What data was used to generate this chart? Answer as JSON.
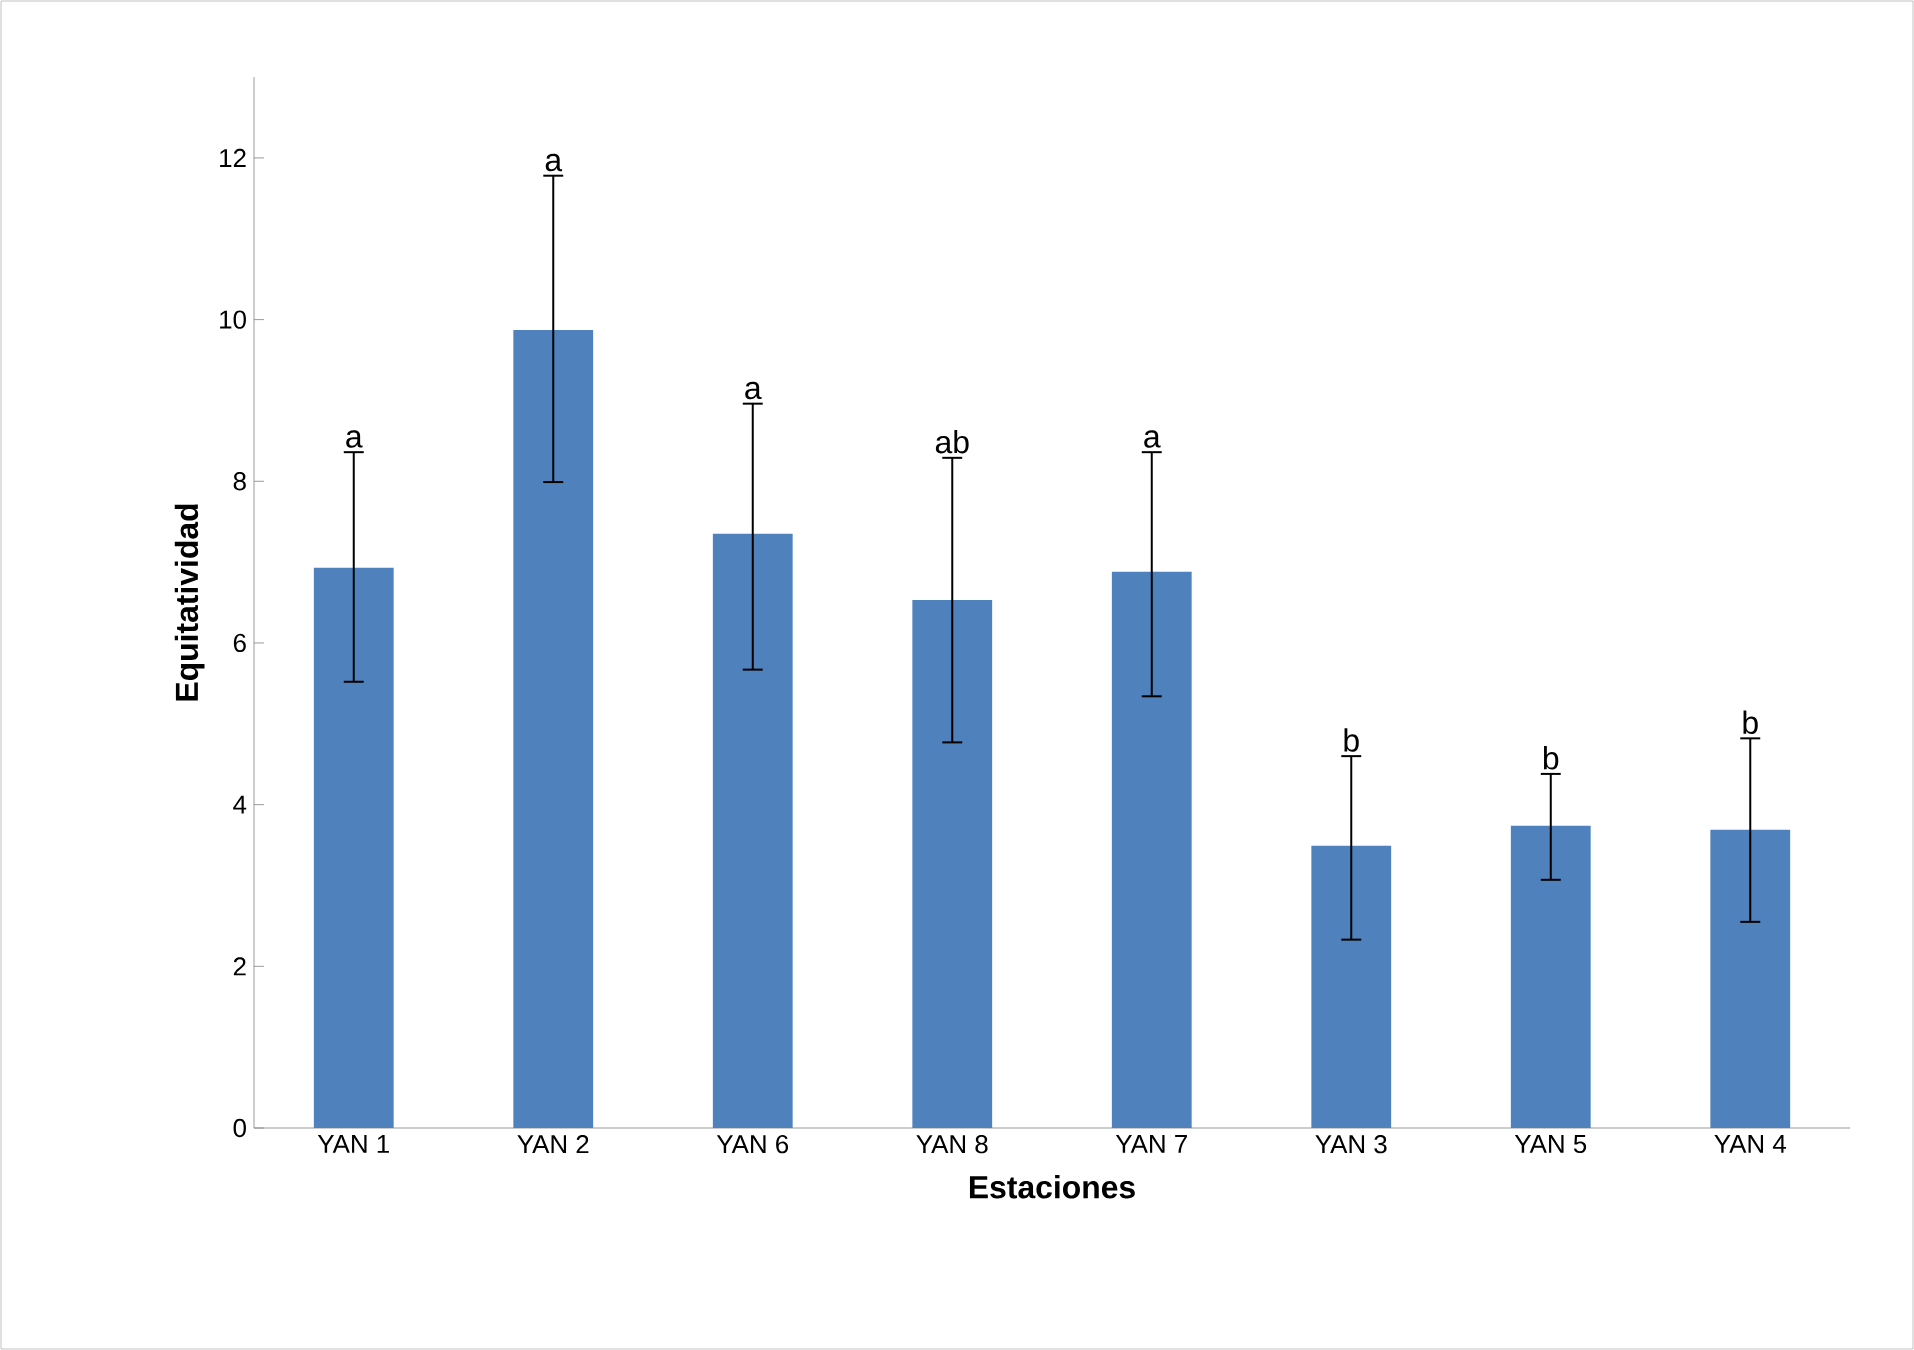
{
  "chart_data": {
    "type": "bar",
    "xlabel": "Estaciones",
    "ylabel": "Equitatividad",
    "categories": [
      "YAN 1",
      "YAN 2",
      "YAN 6",
      "YAN 8",
      "YAN 7",
      "YAN 3",
      "YAN 5",
      "YAN 4"
    ],
    "values": [
      6.93,
      9.87,
      7.35,
      6.53,
      6.88,
      3.49,
      3.74,
      3.69
    ],
    "errors": [
      [
        5.52,
        8.36
      ],
      [
        7.99,
        11.78
      ],
      [
        5.67,
        8.96
      ],
      [
        4.77,
        8.29
      ],
      [
        5.34,
        8.36
      ],
      [
        2.33,
        4.6
      ],
      [
        3.07,
        4.38
      ],
      [
        2.55,
        4.82
      ]
    ],
    "color": "#4f81bd",
    "ylim": [
      0,
      13
    ],
    "yticks": [
      0,
      2,
      4,
      6,
      8,
      10,
      12
    ],
    "grid": false,
    "annotations": [
      {
        "text": "a",
        "x": "YAN 1",
        "y": 8.36
      },
      {
        "text": "a",
        "x": "YAN 2",
        "y": 11.78
      },
      {
        "text": "a",
        "x": "YAN 6",
        "y": 8.96
      },
      {
        "text": "ab",
        "x": "YAN 8",
        "y": 8.29
      },
      {
        "text": "a",
        "x": "YAN 7",
        "y": 8.36
      },
      {
        "text": "b",
        "x": "YAN 3",
        "y": 4.6
      },
      {
        "text": "b",
        "x": "YAN 5",
        "y": 4.38
      },
      {
        "text": "b",
        "x": "YAN 4",
        "y": 4.82
      }
    ]
  }
}
